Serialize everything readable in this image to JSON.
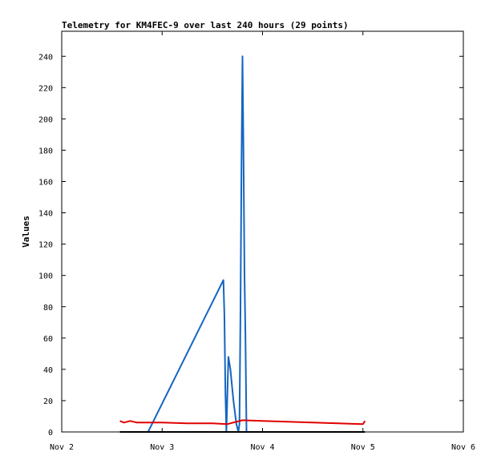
{
  "chart_data": {
    "type": "line",
    "title": "Telemetry for KM4FEC-9 over last 240 hours (29 points)",
    "xlabel": "",
    "ylabel": "Values",
    "x_ticks": [
      "Nov 2",
      "Nov 3",
      "Nov 4",
      "Nov 5",
      "Nov 6"
    ],
    "x_range": [
      "Nov 2",
      "Nov 6"
    ],
    "ylim": [
      0,
      256
    ],
    "y_ticks": [
      0,
      20,
      40,
      60,
      80,
      100,
      120,
      140,
      160,
      180,
      200,
      220,
      240
    ],
    "grid": false,
    "x_unit": "days after Nov 2 00:00",
    "series": [
      {
        "color": "#1565c0",
        "x": [
          0.86,
          1.61,
          1.62,
          1.63,
          1.64,
          1.66,
          1.68,
          1.71,
          1.74,
          1.76,
          1.77,
          1.78,
          1.79,
          1.8,
          1.81,
          1.82,
          1.83,
          1.84
        ],
        "y": [
          0,
          97,
          75,
          25,
          0,
          48,
          40,
          20,
          5,
          0,
          5,
          72,
          168,
          240,
          180,
          100,
          60,
          0
        ]
      },
      {
        "color": "#e00000",
        "x": [
          0.58,
          0.62,
          0.68,
          0.75,
          1.0,
          1.25,
          1.5,
          1.65,
          1.8,
          2.0,
          2.25,
          2.5,
          2.75,
          3.0,
          3.02
        ],
        "y": [
          7,
          6,
          7,
          6,
          6,
          5.5,
          5.5,
          5,
          7.5,
          7,
          6.5,
          6,
          5.5,
          5,
          7
        ]
      },
      {
        "color": "#000000",
        "x": [
          0.58,
          3.02
        ],
        "y": [
          0,
          0
        ]
      }
    ]
  }
}
